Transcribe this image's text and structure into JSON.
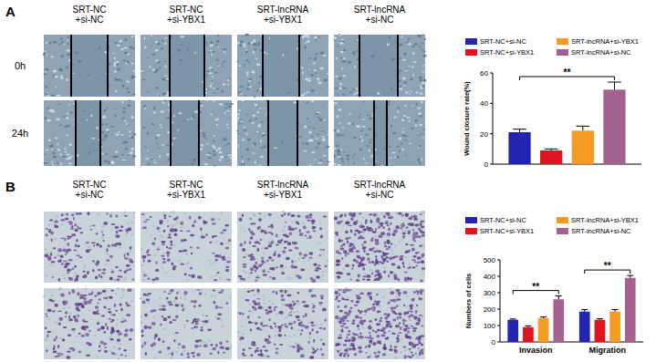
{
  "chart_data": [
    {
      "type": "bar",
      "y_label": "Wound closure rate(%)",
      "categories": [
        null
      ],
      "series": [
        {
          "name": "SRT-NC+si-NC",
          "color": "#2323b4",
          "values": [
            21
          ],
          "errors": [
            2
          ]
        },
        {
          "name": "SRT-NC+si-YBX1",
          "color": "#e0141e",
          "values": [
            9
          ],
          "errors": [
            1
          ]
        },
        {
          "name": "SRT-lncRNA+si-YBX1",
          "color": "#f59a23",
          "values": [
            22
          ],
          "errors": [
            3
          ]
        },
        {
          "name": "SRT-lncRNA+si-NC",
          "color": "#a3628e",
          "values": [
            49
          ],
          "errors": [
            5
          ]
        }
      ],
      "ylim": [
        0,
        60
      ],
      "yticks": [
        0,
        20,
        40,
        60
      ],
      "legend": "top",
      "tick_labels": "y",
      "grid": false,
      "annotations": [
        {
          "text": "**",
          "category": 0,
          "series": [
            0,
            3
          ]
        }
      ]
    },
    {
      "type": "bar",
      "y_label": "Numbers of cells",
      "categories": [
        "Invasion",
        "Migration"
      ],
      "series": [
        {
          "name": "SRT-NC+si-NC",
          "color": "#2323b4",
          "values": [
            135,
            185
          ],
          "errors": [
            5,
            12
          ]
        },
        {
          "name": "SRT-NC+si-YBX1",
          "color": "#e0141e",
          "values": [
            90,
            135
          ],
          "errors": [
            8,
            6
          ]
        },
        {
          "name": "SRT-lncRNA+si-YBX1",
          "color": "#f59a23",
          "values": [
            145,
            185
          ],
          "errors": [
            7,
            12
          ]
        },
        {
          "name": "SRT-lncRNA+si-NC",
          "color": "#a3628e",
          "values": [
            260,
            390
          ],
          "errors": [
            20,
            15
          ]
        }
      ],
      "ylim": [
        0,
        500
      ],
      "yticks": [
        0,
        100,
        200,
        300,
        400,
        500
      ],
      "legend": "top",
      "grid": false,
      "annotations": [
        {
          "text": "**",
          "category": 0,
          "series": [
            0,
            3
          ]
        },
        {
          "text": "**",
          "category": 1,
          "series": [
            0,
            3
          ]
        }
      ]
    }
  ],
  "figure": {
    "panels": [
      {
        "label": "A",
        "columns": [
          [
            "SRT-NC",
            "+si-NC"
          ],
          [
            "SRT-NC",
            "+si-YBX1"
          ],
          [
            "SRT-lncRNA",
            "+si-YBX1"
          ],
          [
            "SRT-lncRNA",
            "+si-NC"
          ]
        ],
        "rows": [
          "0h",
          "24h"
        ]
      },
      {
        "label": "B",
        "columns": [
          [
            "SRT-NC",
            "+si-NC"
          ],
          [
            "SRT-NC",
            "+si-YBX1"
          ],
          [
            "SRT-lncRNA",
            "+si-YBX1"
          ],
          [
            "SRT-lncRNA",
            "+si-NC"
          ]
        ]
      }
    ]
  }
}
